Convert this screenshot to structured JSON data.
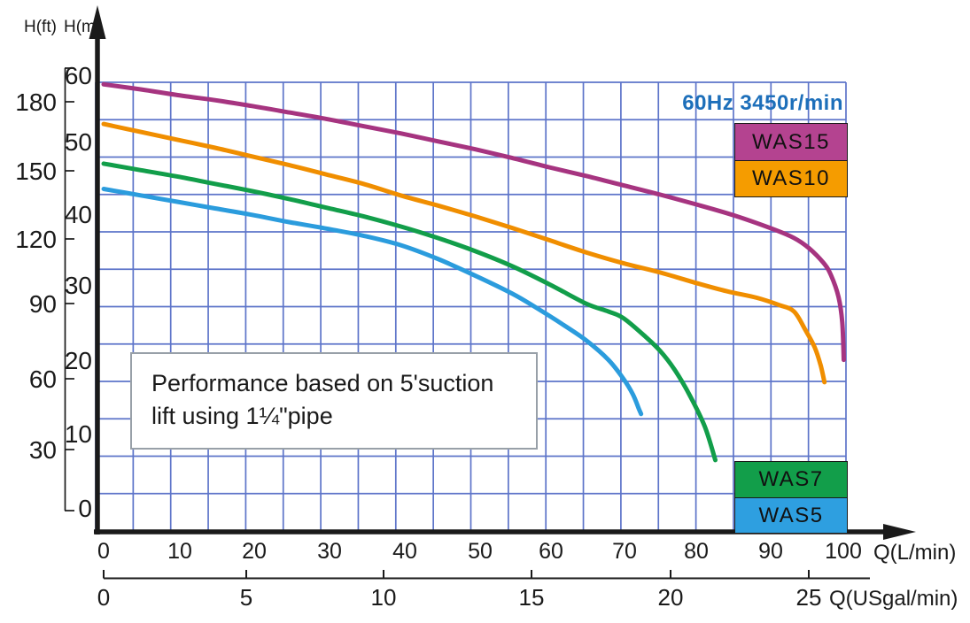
{
  "chart_data": {
    "type": "line",
    "note": "60Hz 3450r/min",
    "x_axis_primary": {
      "label": "Q(L/min)",
      "ticks": [
        0,
        10,
        20,
        30,
        40,
        50,
        60,
        70,
        80,
        90,
        100
      ],
      "range": [
        0,
        100
      ]
    },
    "x_axis_secondary": {
      "label": "Q(USgal/min)",
      "ticks": [
        0,
        5,
        10,
        15,
        20,
        25
      ],
      "range": [
        0,
        26
      ]
    },
    "y_axis_feet": {
      "label": "H(ft)",
      "ticks": [
        30,
        60,
        90,
        120,
        150,
        180
      ]
    },
    "y_axis_meters": {
      "label": "H(m)",
      "ticks": [
        0,
        10,
        20,
        30,
        40,
        50,
        60
      ],
      "range": [
        0,
        60
      ]
    },
    "grid": {
      "visible": true,
      "color": "#5d74c9"
    },
    "annotation": {
      "line1": "Performance based on 5'suction",
      "line2": "lift using 1¼\"pipe"
    },
    "legend_position": "right",
    "series": [
      {
        "name": "WAS15",
        "color": "#b44390",
        "curve_color": "#a63480",
        "points_q_lmin_vs_h_m": [
          [
            0,
            58
          ],
          [
            5,
            57.3
          ],
          [
            10,
            56.5
          ],
          [
            15,
            55.8
          ],
          [
            20,
            55
          ],
          [
            25,
            54.1
          ],
          [
            30,
            53.2
          ],
          [
            35,
            52.2
          ],
          [
            40,
            51.2
          ],
          [
            45,
            50.1
          ],
          [
            50,
            49
          ],
          [
            55,
            47.8
          ],
          [
            60,
            46.5
          ],
          [
            65,
            45.3
          ],
          [
            70,
            44
          ],
          [
            75,
            42.7
          ],
          [
            80,
            41.3
          ],
          [
            85,
            39.8
          ],
          [
            90,
            38
          ],
          [
            93,
            36.7
          ],
          [
            95,
            35.3
          ],
          [
            97,
            33.2
          ],
          [
            98,
            31.5
          ],
          [
            99,
            28.5
          ],
          [
            99.5,
            25
          ],
          [
            99.7,
            19.8
          ]
        ]
      },
      {
        "name": "WAS10",
        "color": "#f59c00",
        "curve_color": "#f08e00",
        "points_q_lmin_vs_h_m": [
          [
            0,
            52.5
          ],
          [
            5,
            51.4
          ],
          [
            10,
            50.3
          ],
          [
            15,
            49.2
          ],
          [
            20,
            48
          ],
          [
            25,
            46.8
          ],
          [
            30,
            45.5
          ],
          [
            35,
            44.2
          ],
          [
            40,
            42.6
          ],
          [
            45,
            41.2
          ],
          [
            50,
            39.7
          ],
          [
            55,
            38.1
          ],
          [
            60,
            36.4
          ],
          [
            65,
            34.7
          ],
          [
            70,
            33.2
          ],
          [
            75,
            31.9
          ],
          [
            80,
            30.4
          ],
          [
            84,
            29.3
          ],
          [
            88,
            28.4
          ],
          [
            91,
            27.4
          ],
          [
            93,
            26.5
          ],
          [
            94.5,
            24
          ],
          [
            95.8,
            21.5
          ],
          [
            96.6,
            19
          ],
          [
            97.1,
            16.7
          ]
        ]
      },
      {
        "name": "WAS7",
        "color": "#129e4a",
        "curve_color": "#129e4a",
        "points_q_lmin_vs_h_m": [
          [
            0,
            47
          ],
          [
            5,
            46.1
          ],
          [
            10,
            45.2
          ],
          [
            15,
            44.2
          ],
          [
            20,
            43.2
          ],
          [
            25,
            42.1
          ],
          [
            30,
            40.9
          ],
          [
            35,
            39.7
          ],
          [
            40,
            38.3
          ],
          [
            45,
            36.7
          ],
          [
            50,
            34.9
          ],
          [
            55,
            32.8
          ],
          [
            60,
            30.3
          ],
          [
            65,
            27.6
          ],
          [
            68,
            26.5
          ],
          [
            70,
            25.6
          ],
          [
            73,
            23
          ],
          [
            75,
            21
          ],
          [
            77,
            18.3
          ],
          [
            79,
            14.8
          ],
          [
            81,
            10.5
          ],
          [
            82.4,
            5.9
          ]
        ]
      },
      {
        "name": "WAS5",
        "color": "#2e9fe0",
        "curve_color": "#2b9cdd",
        "points_q_lmin_vs_h_m": [
          [
            0,
            43.5
          ],
          [
            5,
            42.6
          ],
          [
            10,
            41.7
          ],
          [
            15,
            40.8
          ],
          [
            20,
            39.9
          ],
          [
            25,
            38.9
          ],
          [
            30,
            38
          ],
          [
            35,
            37
          ],
          [
            40,
            35.7
          ],
          [
            45,
            33.8
          ],
          [
            50,
            31.5
          ],
          [
            55,
            29
          ],
          [
            58,
            27.2
          ],
          [
            62,
            24.6
          ],
          [
            65,
            22.5
          ],
          [
            68,
            19.8
          ],
          [
            70,
            17.2
          ],
          [
            71.3,
            15
          ],
          [
            72.1,
            13
          ],
          [
            72.4,
            12.3
          ]
        ]
      }
    ]
  },
  "colors": {
    "axis": "#1a1a1a",
    "note_text": "#1d6fba",
    "annotation_border": "#98a0a8"
  }
}
